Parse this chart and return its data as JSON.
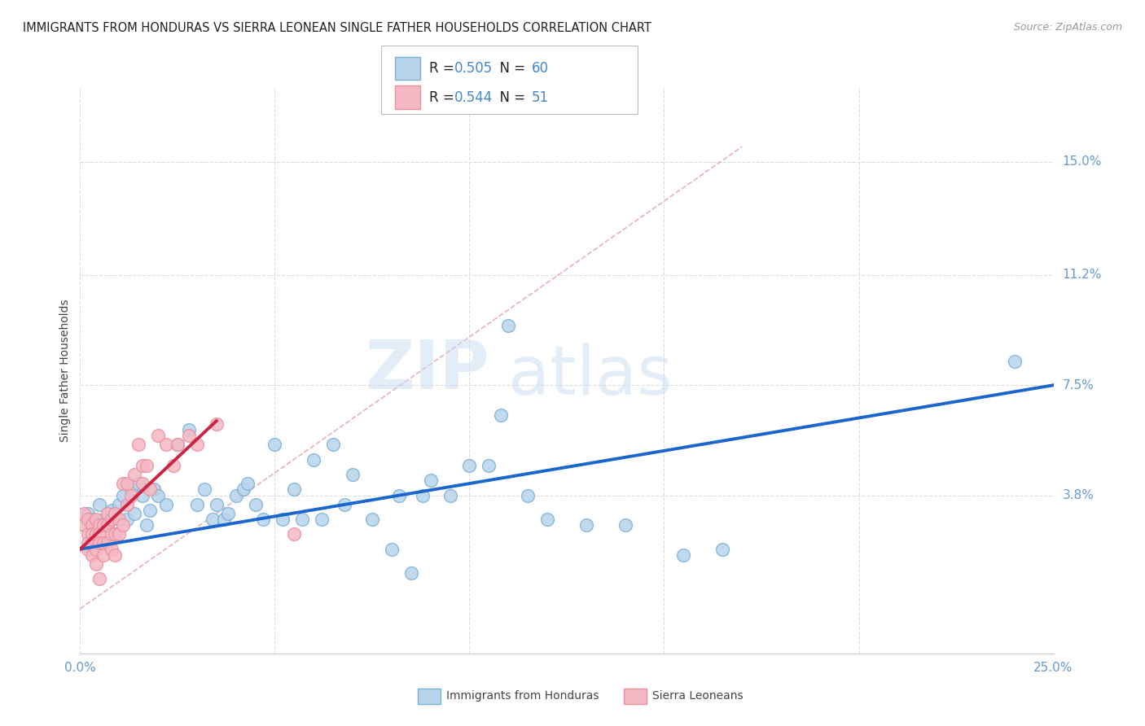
{
  "title": "IMMIGRANTS FROM HONDURAS VS SIERRA LEONEAN SINGLE FATHER HOUSEHOLDS CORRELATION CHART",
  "source": "Source: ZipAtlas.com",
  "ylabel_label": "Single Father Households",
  "xlim": [
    0.0,
    0.25
  ],
  "ylim": [
    -0.015,
    0.175
  ],
  "ytick_values_right": [
    0.15,
    0.112,
    0.075,
    0.038
  ],
  "ytick_labels_right": [
    "15.0%",
    "11.2%",
    "7.5%",
    "3.8%"
  ],
  "blue_color": "#7ab0d4",
  "pink_color": "#e890a0",
  "blue_fill": "#b8d4ec",
  "pink_fill": "#f5b8c4",
  "trend_blue": "#1a66cc",
  "trend_pink": "#cc2244",
  "diagonal_color": "#cccccc",
  "grid_color": "#dddddd",
  "blue_scatter": [
    [
      0.002,
      0.032
    ],
    [
      0.003,
      0.03
    ],
    [
      0.004,
      0.028
    ],
    [
      0.005,
      0.035
    ],
    [
      0.006,
      0.03
    ],
    [
      0.007,
      0.028
    ],
    [
      0.008,
      0.033
    ],
    [
      0.009,
      0.025
    ],
    [
      0.01,
      0.035
    ],
    [
      0.011,
      0.038
    ],
    [
      0.012,
      0.03
    ],
    [
      0.013,
      0.04
    ],
    [
      0.014,
      0.032
    ],
    [
      0.015,
      0.042
    ],
    [
      0.016,
      0.038
    ],
    [
      0.017,
      0.028
    ],
    [
      0.018,
      0.033
    ],
    [
      0.019,
      0.04
    ],
    [
      0.02,
      0.038
    ],
    [
      0.022,
      0.035
    ],
    [
      0.025,
      0.055
    ],
    [
      0.028,
      0.06
    ],
    [
      0.03,
      0.035
    ],
    [
      0.032,
      0.04
    ],
    [
      0.034,
      0.03
    ],
    [
      0.035,
      0.035
    ],
    [
      0.037,
      0.03
    ],
    [
      0.038,
      0.032
    ],
    [
      0.04,
      0.038
    ],
    [
      0.042,
      0.04
    ],
    [
      0.043,
      0.042
    ],
    [
      0.045,
      0.035
    ],
    [
      0.047,
      0.03
    ],
    [
      0.05,
      0.055
    ],
    [
      0.052,
      0.03
    ],
    [
      0.055,
      0.04
    ],
    [
      0.057,
      0.03
    ],
    [
      0.06,
      0.05
    ],
    [
      0.062,
      0.03
    ],
    [
      0.065,
      0.055
    ],
    [
      0.068,
      0.035
    ],
    [
      0.07,
      0.045
    ],
    [
      0.075,
      0.03
    ],
    [
      0.08,
      0.02
    ],
    [
      0.082,
      0.038
    ],
    [
      0.085,
      0.012
    ],
    [
      0.088,
      0.038
    ],
    [
      0.09,
      0.043
    ],
    [
      0.095,
      0.038
    ],
    [
      0.1,
      0.048
    ],
    [
      0.105,
      0.048
    ],
    [
      0.108,
      0.065
    ],
    [
      0.11,
      0.095
    ],
    [
      0.115,
      0.038
    ],
    [
      0.12,
      0.03
    ],
    [
      0.13,
      0.028
    ],
    [
      0.14,
      0.028
    ],
    [
      0.155,
      0.018
    ],
    [
      0.165,
      0.02
    ],
    [
      0.24,
      0.083
    ]
  ],
  "pink_scatter": [
    [
      0.001,
      0.032
    ],
    [
      0.001,
      0.028
    ],
    [
      0.002,
      0.03
    ],
    [
      0.002,
      0.025
    ],
    [
      0.002,
      0.022
    ],
    [
      0.002,
      0.02
    ],
    [
      0.003,
      0.028
    ],
    [
      0.003,
      0.025
    ],
    [
      0.003,
      0.022
    ],
    [
      0.003,
      0.018
    ],
    [
      0.004,
      0.03
    ],
    [
      0.004,
      0.025
    ],
    [
      0.004,
      0.02
    ],
    [
      0.004,
      0.015
    ],
    [
      0.005,
      0.028
    ],
    [
      0.005,
      0.025
    ],
    [
      0.005,
      0.022
    ],
    [
      0.005,
      0.01
    ],
    [
      0.006,
      0.028
    ],
    [
      0.006,
      0.022
    ],
    [
      0.006,
      0.018
    ],
    [
      0.007,
      0.032
    ],
    [
      0.007,
      0.028
    ],
    [
      0.007,
      0.022
    ],
    [
      0.008,
      0.03
    ],
    [
      0.008,
      0.025
    ],
    [
      0.008,
      0.02
    ],
    [
      0.009,
      0.032
    ],
    [
      0.009,
      0.025
    ],
    [
      0.009,
      0.018
    ],
    [
      0.01,
      0.03
    ],
    [
      0.01,
      0.025
    ],
    [
      0.011,
      0.042
    ],
    [
      0.011,
      0.028
    ],
    [
      0.012,
      0.042
    ],
    [
      0.012,
      0.035
    ],
    [
      0.013,
      0.038
    ],
    [
      0.014,
      0.045
    ],
    [
      0.015,
      0.055
    ],
    [
      0.016,
      0.048
    ],
    [
      0.016,
      0.042
    ],
    [
      0.017,
      0.048
    ],
    [
      0.018,
      0.04
    ],
    [
      0.02,
      0.058
    ],
    [
      0.022,
      0.055
    ],
    [
      0.024,
      0.048
    ],
    [
      0.025,
      0.055
    ],
    [
      0.028,
      0.058
    ],
    [
      0.03,
      0.055
    ],
    [
      0.035,
      0.062
    ],
    [
      0.055,
      0.025
    ]
  ],
  "watermark_text": "ZIP",
  "watermark_text2": "atlas",
  "background_color": "#ffffff"
}
